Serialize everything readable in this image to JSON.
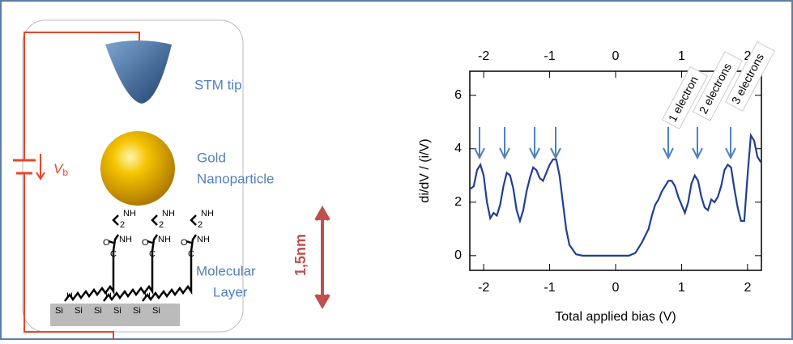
{
  "chart_data": {
    "type": "line",
    "xlabel": "Total applied bias (V)",
    "ylabel": "di/dV / (i/V)",
    "xlim": [
      -2.21,
      2.21
    ],
    "ylim": [
      -0.55,
      6.9
    ],
    "xticks": [
      -2,
      -1,
      0,
      1,
      2
    ],
    "yticks": [
      0,
      2,
      4,
      6
    ],
    "annotations": [
      "1 electron",
      "2 electrons",
      "3 electrons"
    ],
    "series": [
      {
        "color": "#1f3f94",
        "x": [
          -2.2,
          -2.15,
          -2.1,
          -2.05,
          -2.0,
          -1.95,
          -1.9,
          -1.85,
          -1.8,
          -1.75,
          -1.7,
          -1.65,
          -1.6,
          -1.55,
          -1.5,
          -1.45,
          -1.4,
          -1.35,
          -1.3,
          -1.25,
          -1.2,
          -1.15,
          -1.1,
          -1.05,
          -1.0,
          -0.95,
          -0.9,
          -0.85,
          -0.8,
          -0.75,
          -0.7,
          -0.6,
          -0.5,
          -0.4,
          -0.2,
          0,
          0.2,
          0.3,
          0.4,
          0.5,
          0.55,
          0.6,
          0.65,
          0.7,
          0.8,
          0.85,
          0.9,
          0.95,
          1.0,
          1.05,
          1.1,
          1.15,
          1.2,
          1.25,
          1.3,
          1.35,
          1.4,
          1.45,
          1.5,
          1.55,
          1.6,
          1.65,
          1.7,
          1.75,
          1.8,
          1.85,
          1.9,
          1.95,
          2.0,
          2.05,
          2.1,
          2.15,
          2.2
        ],
        "values": [
          2.5,
          2.6,
          3.2,
          3.4,
          3.0,
          2.0,
          1.4,
          1.6,
          1.5,
          1.9,
          2.6,
          3.1,
          3.0,
          2.5,
          1.7,
          1.3,
          1.7,
          2.4,
          2.9,
          3.3,
          3.2,
          2.9,
          2.8,
          3.1,
          3.4,
          3.6,
          3.6,
          3.0,
          2.0,
          1.0,
          0.4,
          0.05,
          0.0,
          0.0,
          0.0,
          0.0,
          0.0,
          0.1,
          0.5,
          1.0,
          1.5,
          1.9,
          2.1,
          2.4,
          2.8,
          2.8,
          2.6,
          2.2,
          1.9,
          1.6,
          2.0,
          2.7,
          3.0,
          2.8,
          2.2,
          1.8,
          1.7,
          2.1,
          2.0,
          2.2,
          2.6,
          3.2,
          3.4,
          3.3,
          2.5,
          1.8,
          1.3,
          1.3,
          3.0,
          4.5,
          4.3,
          3.7,
          3.5
        ]
      }
    ]
  },
  "diagram": {
    "tip": "STM tip",
    "particle": [
      "Gold",
      "Nanoparticle"
    ],
    "layer": [
      "Molecular",
      "Layer"
    ],
    "voltage": "V",
    "voltage_sub": "b",
    "length": "1,5nm",
    "molecule": {
      "amine": "NH",
      "sub": "2",
      "oxygen": "O",
      "carbon": "C",
      "amide": "NH",
      "hydrogen": "H",
      "silicon": "Si"
    }
  }
}
